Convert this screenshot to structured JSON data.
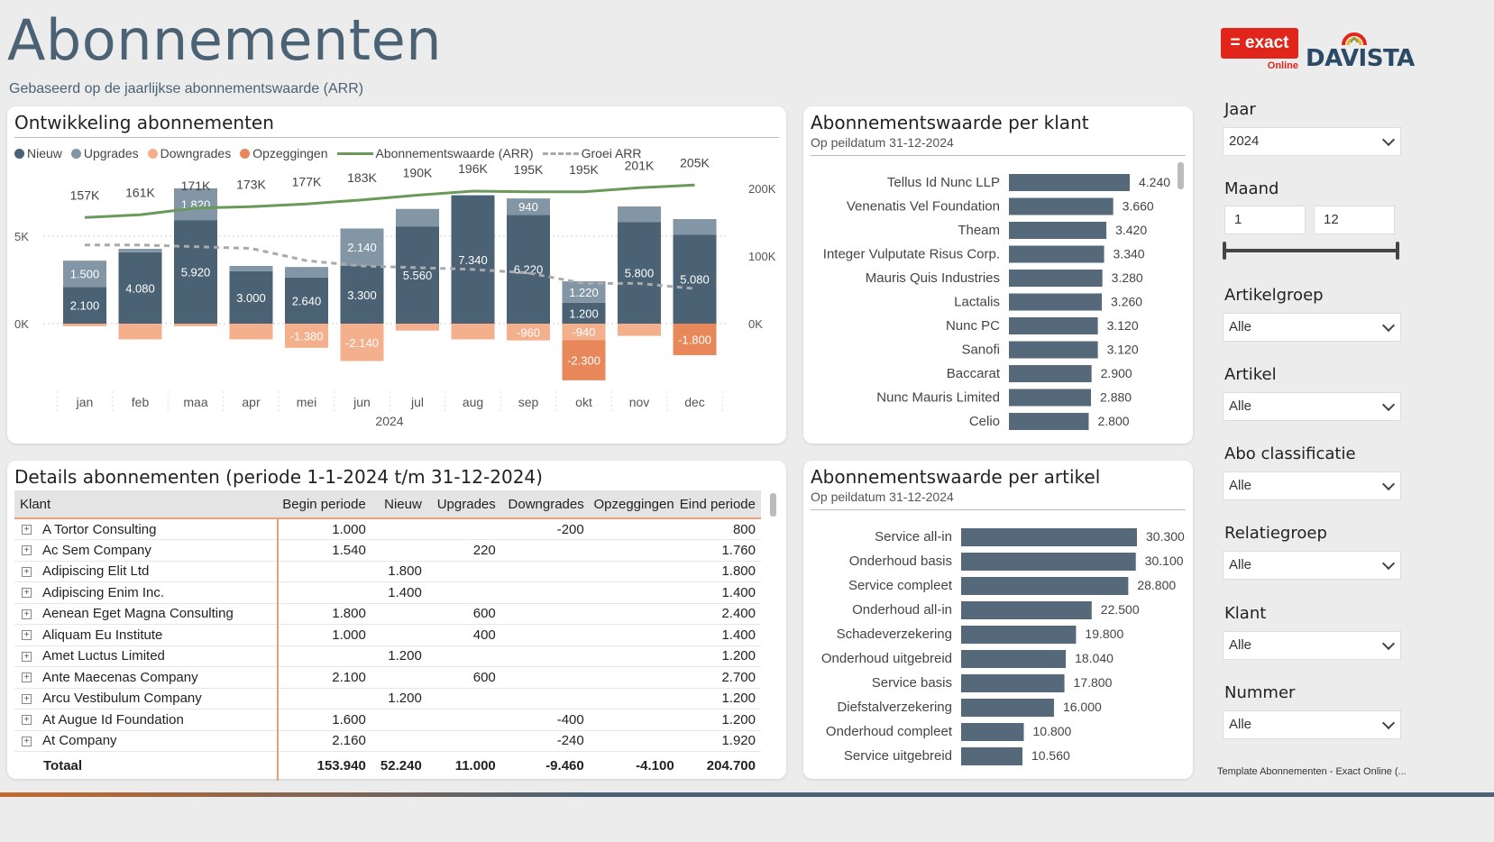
{
  "page": {
    "title": "Abonnementen",
    "subtitle": "Gebaseerd op de jaarlijkse abonnementswaarde (ARR)"
  },
  "logos": {
    "exact": "= exact",
    "exact_sub": "Online",
    "davista": "DAVISTA"
  },
  "colors": {
    "nieuw": "#4a6274",
    "upgrades": "#8396a5",
    "downgrades": "#f4b08d",
    "opzeggingen": "#e8875a",
    "arr": "#6a9a5a",
    "groei": "#aaaaaa",
    "bar": "#56697a"
  },
  "dev_chart": {
    "title": "Ontwikkeling abonnementen",
    "legend": [
      "Nieuw",
      "Upgrades",
      "Downgrades",
      "Opzeggingen",
      "Abonnementswaarde (ARR)",
      "Groei ARR"
    ],
    "year_label": "2024",
    "left_ticks": [
      "5K",
      "0K"
    ],
    "right_ticks": [
      "200K",
      "100K",
      "0K"
    ]
  },
  "chart_data": [
    {
      "type": "bar",
      "title": "Ontwikkeling abonnementen",
      "categories": [
        "jan",
        "feb",
        "maa",
        "apr",
        "mei",
        "jun",
        "jul",
        "aug",
        "sep",
        "okt",
        "nov",
        "dec"
      ],
      "series": [
        {
          "name": "Nieuw",
          "values": [
            2100,
            4080,
            5920,
            3000,
            2640,
            3300,
            5560,
            7340,
            6220,
            1200,
            5800,
            5080
          ],
          "labels": [
            "2.100",
            "4.080",
            "5.920",
            "3.000",
            "2.640",
            "3.300",
            "5.560",
            "7.340",
            "6.220",
            "1.200",
            "5.800",
            "5.080"
          ]
        },
        {
          "name": "Upgrades",
          "values": [
            1500,
            200,
            1820,
            300,
            600,
            2140,
            1000,
            0,
            940,
            1220,
            900,
            900
          ],
          "labels": [
            "1.500",
            "",
            "1.820",
            "",
            "",
            "2.140",
            "",
            "",
            "940",
            "1.220",
            "",
            ""
          ]
        },
        {
          "name": "Downgrades",
          "values": [
            -150,
            -900,
            -150,
            -900,
            -1380,
            -2140,
            -400,
            -900,
            -960,
            -940,
            -700,
            0
          ],
          "labels": [
            "",
            "",
            "",
            "",
            "-1.380",
            "-2.140",
            "",
            "",
            "-960",
            "-940",
            "",
            ""
          ]
        },
        {
          "name": "Opzeggingen",
          "values": [
            0,
            0,
            0,
            0,
            0,
            0,
            0,
            0,
            0,
            -2300,
            0,
            -1800
          ],
          "labels": [
            "",
            "",
            "",
            "",
            "",
            "",
            "",
            "",
            "",
            "-2.300",
            "",
            "-1.800"
          ]
        },
        {
          "name": "Abonnementswaarde (ARR)",
          "values": [
            157000,
            161000,
            171000,
            173000,
            177000,
            183000,
            190000,
            196000,
            195000,
            195000,
            201000,
            205000
          ],
          "labels": [
            "157K",
            "161K",
            "171K",
            "173K",
            "177K",
            "183K",
            "190K",
            "196K",
            "195K",
            "195K",
            "201K",
            "205K"
          ]
        },
        {
          "name": "Groei ARR",
          "values": [
            4500,
            4500,
            4400,
            4300,
            3600,
            3300,
            3200,
            3100,
            2900,
            2300,
            2300,
            2000
          ]
        }
      ],
      "ylim_left": [
        -2500,
        8000
      ],
      "ylim_right": [
        0,
        220000
      ]
    },
    {
      "type": "bar",
      "title": "Abonnementswaarde per klant",
      "categories": [
        "Tellus Id Nunc LLP",
        "Venenatis Vel Foundation",
        "Theam",
        "Integer Vulputate Risus Corp.",
        "Mauris Quis Industries",
        "Lactalis",
        "Nunc PC",
        "Sanofi",
        "Baccarat",
        "Nunc Mauris Limited",
        "Celio"
      ],
      "values": [
        4240,
        3660,
        3420,
        3340,
        3280,
        3260,
        3120,
        3120,
        2900,
        2880,
        2800
      ],
      "labels": [
        "4.240",
        "3.660",
        "3.420",
        "3.340",
        "3.280",
        "3.260",
        "3.120",
        "3.120",
        "2.900",
        "2.880",
        "2.800"
      ],
      "xlim": [
        0,
        4240
      ]
    },
    {
      "type": "bar",
      "title": "Abonnementswaarde per artikel",
      "categories": [
        "Service all-in",
        "Onderhoud basis",
        "Service compleet",
        "Onderhoud all-in",
        "Schadeverzekering",
        "Onderhoud uitgebreid",
        "Service basis",
        "Diefstalverzekering",
        "Onderhoud compleet",
        "Service uitgebreid"
      ],
      "values": [
        30300,
        30100,
        28800,
        22500,
        19800,
        18040,
        17800,
        16000,
        10800,
        10560
      ],
      "labels": [
        "30.300",
        "30.100",
        "28.800",
        "22.500",
        "19.800",
        "18.040",
        "17.800",
        "16.000",
        "10.800",
        "10.560"
      ],
      "xlim": [
        0,
        30300
      ]
    }
  ],
  "klant_card": {
    "title": "Abonnementswaarde per klant",
    "subtitle": "Op peildatum 31-12-2024"
  },
  "artikel_card": {
    "title": "Abonnementswaarde per artikel",
    "subtitle": "Op peildatum 31-12-2024"
  },
  "details": {
    "title": "Details abonnementen (periode 1-1-2024 t/m 31-12-2024)",
    "columns": [
      "Klant",
      "Begin periode",
      "Nieuw",
      "Upgrades",
      "Downgrades",
      "Opzeggingen",
      "Eind periode"
    ],
    "rows": [
      [
        "A Tortor Consulting",
        "1.000",
        "",
        "",
        "-200",
        "",
        "800"
      ],
      [
        "Ac Sem Company",
        "1.540",
        "",
        "220",
        "",
        "",
        "1.760"
      ],
      [
        "Adipiscing Elit Ltd",
        "",
        "1.800",
        "",
        "",
        "",
        "1.800"
      ],
      [
        "Adipiscing Enim Inc.",
        "",
        "1.400",
        "",
        "",
        "",
        "1.400"
      ],
      [
        "Aenean Eget Magna Consulting",
        "1.800",
        "",
        "600",
        "",
        "",
        "2.400"
      ],
      [
        "Aliquam Eu Institute",
        "1.000",
        "",
        "400",
        "",
        "",
        "1.400"
      ],
      [
        "Amet Luctus Limited",
        "",
        "1.200",
        "",
        "",
        "",
        "1.200"
      ],
      [
        "Ante Maecenas Company",
        "2.100",
        "",
        "600",
        "",
        "",
        "2.700"
      ],
      [
        "Arcu Vestibulum Company",
        "",
        "1.200",
        "",
        "",
        "",
        "1.200"
      ],
      [
        "At Augue Id Foundation",
        "1.600",
        "",
        "",
        "-400",
        "",
        "1.200"
      ],
      [
        "At Company",
        "2.160",
        "",
        "",
        "-240",
        "",
        "1.920"
      ]
    ],
    "total": [
      "Totaal",
      "153.940",
      "52.240",
      "11.000",
      "-9.460",
      "-4.100",
      "204.700"
    ]
  },
  "slicers": {
    "jaar_label": "Jaar",
    "jaar_value": "2024",
    "maand_label": "Maand",
    "maand_from": "1",
    "maand_to": "12",
    "artikelgroep_label": "Artikelgroep",
    "artikelgroep_value": "Alle",
    "artikel_label": "Artikel",
    "artikel_value": "Alle",
    "abo_label": "Abo classificatie",
    "abo_value": "Alle",
    "relatie_label": "Relatiegroep",
    "relatie_value": "Alle",
    "klant_label": "Klant",
    "klant_value": "Alle",
    "nummer_label": "Nummer",
    "nummer_value": "Alle"
  },
  "footer": {
    "note": "Template Abonnementen - Exact Online (..."
  }
}
